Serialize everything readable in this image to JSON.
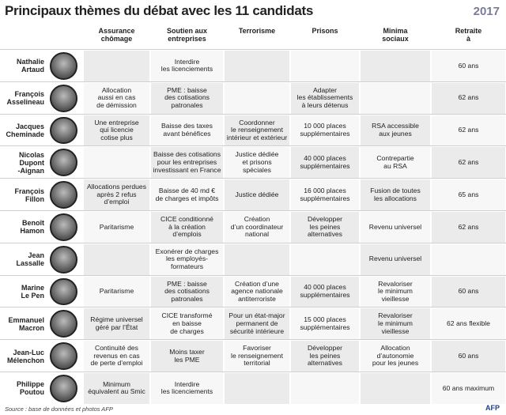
{
  "header": {
    "title": "Principaux thèmes du débat avec les 11 candidats",
    "logo": "2017"
  },
  "table": {
    "columns": [
      "Assurance\nchômage",
      "Soutien aux\nentreprises",
      "Terrorisme",
      "Prisons",
      "Minima\nsociaux",
      "Retraite\nà"
    ],
    "rows": [
      {
        "name": "Nathalie\nArtaud",
        "cells": [
          null,
          "Interdire\nles licenciements",
          null,
          null,
          null,
          "60 ans"
        ]
      },
      {
        "name": "François\nAsselineau",
        "cells": [
          "Allocation\naussi en cas\nde démission",
          "PME : baisse\ndes cotisations\npatronales",
          null,
          "Adapter\nles établissements\nà leurs détenus",
          null,
          "62 ans"
        ]
      },
      {
        "name": "Jacques\nCheminade",
        "cells": [
          "Une entreprise\nqui licencie\ncotise plus",
          "Baisse des taxes\navant bénéfices",
          "Coordonner\nle renseignement\nintérieur et extérieur",
          "10 000 places\nsupplémentaires",
          "RSA accessible\naux jeunes",
          "62 ans"
        ]
      },
      {
        "name": "Nicolas\nDupont\n-Aignan",
        "cells": [
          null,
          "Baisse des cotisations\npour les entreprises\ninvestissant en France",
          "Justice dédiée\net prisons\nspéciales",
          "40 000 places\nsupplémentaires",
          "Contrepartie\nau RSA",
          "62 ans"
        ]
      },
      {
        "name": "François\nFillon",
        "cells": [
          "Allocations perdues\naprès 2 refus\nd’emploi",
          "Baisse de 40 md €\nde charges et impôts",
          "Justice dédiée",
          "16 000 places\nsupplémentaires",
          "Fusion de toutes\nles allocations",
          "65 ans"
        ]
      },
      {
        "name": "Benoît\nHamon",
        "cells": [
          "Paritarisme",
          "CICE conditionné\nà la création\nd’emplois",
          "Création\nd’un coordinateur\nnational",
          "Développer\nles peines\nalternatives",
          "Revenu universel",
          "62 ans"
        ]
      },
      {
        "name": "Jean\nLassalle",
        "cells": [
          null,
          "Exonérer de charges\nles employés-\nformateurs",
          null,
          null,
          "Revenu universel",
          null
        ]
      },
      {
        "name": "Marine\nLe Pen",
        "cells": [
          "Paritarisme",
          "PME : baisse\ndes cotisations\npatronales",
          "Création d’une\nagence nationale\nantiterroriste",
          "40 000 places\nsupplémentaires",
          "Revaloriser\nle minimum\nvieillesse",
          "60 ans"
        ]
      },
      {
        "name": "Emmanuel\nMacron",
        "cells": [
          "Régime universel\ngéré par l’État",
          "CICE transformé\nen baisse\nde charges",
          "Pour un état-major\npermanent de\nsécurité intérieure",
          "15 000 places\nsupplémentaires",
          "Revaloriser\nle minimum\nvieillesse",
          "62 ans flexible"
        ]
      },
      {
        "name": "Jean-Luc\nMélenchon",
        "cells": [
          "Continuité des\nrevenus en cas\nde perte d’emploi",
          "Moins taxer\nles PME",
          "Favoriser\nle renseignement\nterritorial",
          "Développer\nles peines\nalternatives",
          "Allocation\nd’autonomie\npour les jeunes",
          "60 ans"
        ]
      },
      {
        "name": "Philippe\nPoutou",
        "cells": [
          "Minimum\néquivalent au Smic",
          "Interdire\nles licenciements",
          null,
          null,
          null,
          "60 ans maximum"
        ]
      }
    ]
  },
  "footer": {
    "source": "Source : base de données et photos AFP",
    "logo": "AFP"
  }
}
